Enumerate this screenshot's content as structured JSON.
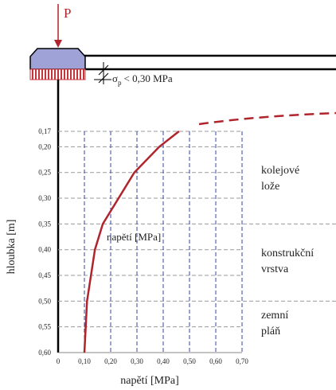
{
  "chart_data": {
    "type": "line",
    "load_label": "P",
    "contact_stress": {
      "symbol": "σ",
      "subscript": "p",
      "text": "< 0,30 MPa"
    },
    "y_label": "hloubka [m]",
    "x_label": "napětí [MPa]",
    "curve_label": "napětí [MPa]",
    "layers": [
      [
        "kolejové",
        "lože"
      ],
      [
        "konstrukční",
        "vrstva"
      ],
      [
        "zemní",
        "pláň"
      ]
    ],
    "x": [
      0.1,
      0.11,
      0.14,
      0.17,
      0.23,
      0.29,
      0.385,
      0.46
    ],
    "values": [
      0.6,
      0.5,
      0.4,
      0.35,
      0.3,
      0.25,
      0.2,
      0.17
    ],
    "color": "#b0242c",
    "xlim": [
      0,
      0.7
    ],
    "xticks": [
      0,
      {
        "value": 0.1,
        "label": "0,10"
      },
      {
        "value": 0.2,
        "label": "0,20"
      },
      {
        "value": 0.3,
        "label": "0,30"
      },
      {
        "value": 0.4,
        "label": "0,40"
      },
      {
        "value": 0.5,
        "label": "0,50"
      },
      {
        "value": 0.6,
        "label": "0,60"
      },
      {
        "value": 0.7,
        "label": "0,70"
      }
    ],
    "ylim": [
      0.17,
      0.6
    ],
    "yticks": [
      {
        "value": 0.17,
        "label": "0,17"
      },
      {
        "value": 0.2,
        "label": "0,20"
      },
      {
        "value": 0.25,
        "label": "0,25"
      },
      {
        "value": 0.3,
        "label": "0,30"
      },
      {
        "value": 0.35,
        "label": "0,35"
      },
      {
        "value": 0.4,
        "label": "0,40"
      },
      {
        "value": 0.45,
        "label": "0,45"
      },
      {
        "value": 0.5,
        "label": "0,50"
      },
      {
        "value": 0.55,
        "label": "0,55"
      },
      {
        "value": 0.6,
        "label": "0,60"
      }
    ],
    "grid": true
  }
}
